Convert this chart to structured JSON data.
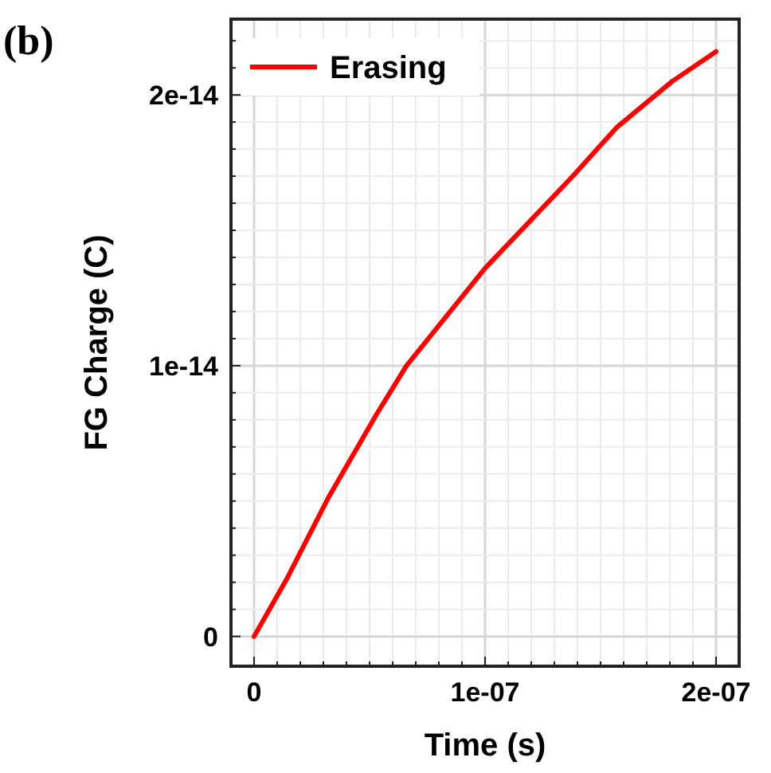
{
  "chart_data": {
    "type": "line",
    "title": "(b)",
    "xlabel": "Time (s)",
    "ylabel": "FG Charge (C)",
    "x": [
      0,
      1.4e-08,
      3.2e-08,
      5.3e-08,
      6.6e-08,
      1e-07,
      1.38e-07,
      1.57e-07,
      1.81e-07,
      2e-07
    ],
    "series": [
      {
        "name": "Erasing",
        "color": "#ff0000",
        "values": [
          0,
          2.1e-15,
          5.1e-15,
          8.2e-15,
          1e-14,
          1.36e-14,
          1.7e-14,
          1.88e-14,
          2.05e-14,
          2.16e-14
        ]
      }
    ],
    "xlim": [
      -1e-08,
      2.1e-07
    ],
    "xticks": [
      {
        "value": 0,
        "label": "0"
      },
      {
        "value": 1e-08,
        "label": null
      },
      {
        "value": 2e-08,
        "label": null
      },
      {
        "value": 3e-08,
        "label": null
      },
      {
        "value": 4e-08,
        "label": null
      },
      {
        "value": 5e-08,
        "label": null
      },
      {
        "value": 6e-08,
        "label": null
      },
      {
        "value": 7e-08,
        "label": null
      },
      {
        "value": 8e-08,
        "label": null
      },
      {
        "value": 9e-08,
        "label": null
      },
      {
        "value": 1e-07,
        "label": "1e-07"
      },
      {
        "value": 1.1e-07,
        "label": null
      },
      {
        "value": 1.2e-07,
        "label": null
      },
      {
        "value": 1.3e-07,
        "label": null
      },
      {
        "value": 1.4e-07,
        "label": null
      },
      {
        "value": 1.5e-07,
        "label": null
      },
      {
        "value": 1.6e-07,
        "label": null
      },
      {
        "value": 1.7e-07,
        "label": null
      },
      {
        "value": 1.8e-07,
        "label": null
      },
      {
        "value": 1.9e-07,
        "label": null
      },
      {
        "value": 2e-07,
        "label": "2e-07"
      }
    ],
    "ylim": [
      -1.1e-15,
      2.28e-14
    ],
    "yticks": [
      {
        "value": 0,
        "label": "0"
      },
      {
        "value": 1e-15,
        "label": null
      },
      {
        "value": 2e-15,
        "label": null
      },
      {
        "value": 3e-15,
        "label": null
      },
      {
        "value": 4e-15,
        "label": null
      },
      {
        "value": 5e-15,
        "label": null
      },
      {
        "value": 6e-15,
        "label": null
      },
      {
        "value": 7e-15,
        "label": null
      },
      {
        "value": 8e-15,
        "label": null
      },
      {
        "value": 9e-15,
        "label": null
      },
      {
        "value": 1e-14,
        "label": "1e-14"
      },
      {
        "value": 1.1e-14,
        "label": null
      },
      {
        "value": 1.2e-14,
        "label": null
      },
      {
        "value": 1.3e-14,
        "label": null
      },
      {
        "value": 1.4e-14,
        "label": null
      },
      {
        "value": 1.5e-14,
        "label": null
      },
      {
        "value": 1.6e-14,
        "label": null
      },
      {
        "value": 1.7e-14,
        "label": null
      },
      {
        "value": 1.8e-14,
        "label": null
      },
      {
        "value": 1.9e-14,
        "label": null
      },
      {
        "value": 2e-14,
        "label": "2e-14"
      },
      {
        "value": 2.1e-14,
        "label": null
      },
      {
        "value": 2.2e-14,
        "label": null
      }
    ],
    "grid": true,
    "legend": "top left",
    "marker": "none",
    "line_style": "solid"
  }
}
